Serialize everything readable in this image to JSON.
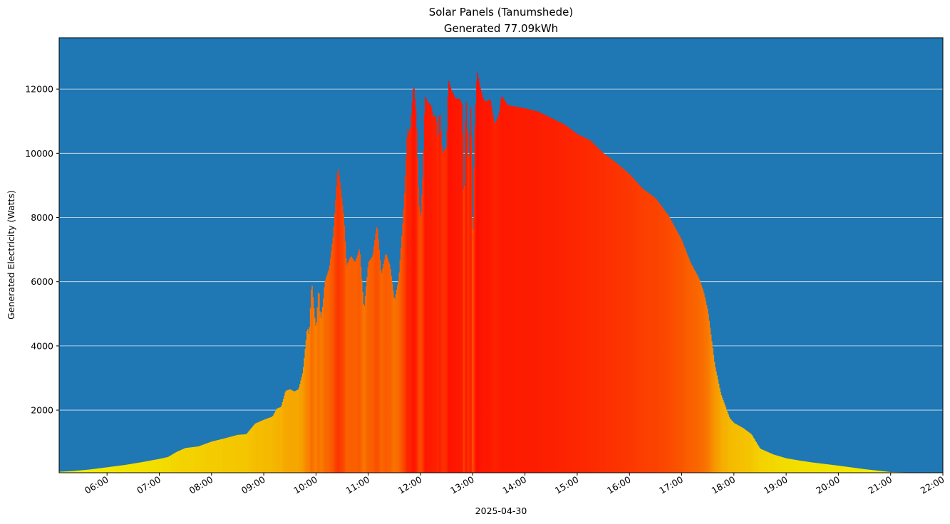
{
  "chart_data": {
    "type": "bar",
    "title": "Solar Panels (Tanumshede)",
    "subtitle": "Generated 77.09kWh",
    "xlabel": "2025-04-30",
    "ylabel": "Generated Electricity (Watts)",
    "x_tick_labels": [
      "06:00",
      "07:00",
      "08:00",
      "09:00",
      "10:00",
      "11:00",
      "12:00",
      "13:00",
      "14:00",
      "15:00",
      "16:00",
      "17:00",
      "18:00",
      "19:00",
      "20:00",
      "21:00",
      "22:00"
    ],
    "y_ticks": [
      2000,
      4000,
      6000,
      8000,
      10000,
      12000
    ],
    "ylim": [
      50,
      13600
    ],
    "xlim": [
      "05:05",
      "22:00"
    ],
    "grid": "y",
    "background_color": "#1f77b4",
    "color_scale": [
      "#f2f200",
      "#ff0000"
    ],
    "points": [
      [
        "05:05",
        80
      ],
      [
        "05:20",
        100
      ],
      [
        "05:40",
        150
      ],
      [
        "06:00",
        220
      ],
      [
        "06:20",
        290
      ],
      [
        "06:40",
        380
      ],
      [
        "07:00",
        480
      ],
      [
        "07:10",
        540
      ],
      [
        "07:20",
        700
      ],
      [
        "07:30",
        820
      ],
      [
        "07:45",
        870
      ],
      [
        "08:00",
        1020
      ],
      [
        "08:15",
        1120
      ],
      [
        "08:30",
        1230
      ],
      [
        "08:40",
        1250
      ],
      [
        "08:50",
        1580
      ],
      [
        "09:00",
        1700
      ],
      [
        "09:10",
        1800
      ],
      [
        "09:15",
        2050
      ],
      [
        "09:20",
        2100
      ],
      [
        "09:25",
        2600
      ],
      [
        "09:30",
        2650
      ],
      [
        "09:35",
        2580
      ],
      [
        "09:40",
        2650
      ],
      [
        "09:45",
        3200
      ],
      [
        "09:50",
        4600
      ],
      [
        "09:52",
        4300
      ],
      [
        "09:55",
        6050
      ],
      [
        "09:58",
        5000
      ],
      [
        "10:00",
        4500
      ],
      [
        "10:03",
        5900
      ],
      [
        "10:05",
        4800
      ],
      [
        "10:08",
        5300
      ],
      [
        "10:10",
        6000
      ],
      [
        "10:15",
        6400
      ],
      [
        "10:20",
        7500
      ],
      [
        "10:25",
        9600
      ],
      [
        "10:28",
        9000
      ],
      [
        "10:32",
        8000
      ],
      [
        "10:35",
        6500
      ],
      [
        "10:40",
        6800
      ],
      [
        "10:45",
        6600
      ],
      [
        "10:50",
        7050
      ],
      [
        "10:55",
        5100
      ],
      [
        "11:00",
        6600
      ],
      [
        "11:05",
        6800
      ],
      [
        "11:10",
        7800
      ],
      [
        "11:15",
        6200
      ],
      [
        "11:20",
        6900
      ],
      [
        "11:25",
        6500
      ],
      [
        "11:30",
        5400
      ],
      [
        "11:35",
        6100
      ],
      [
        "11:40",
        8000
      ],
      [
        "11:42",
        9000
      ],
      [
        "11:45",
        10800
      ],
      [
        "11:48",
        10600
      ],
      [
        "11:50",
        11400
      ],
      [
        "11:52",
        12200
      ],
      [
        "11:55",
        11200
      ],
      [
        "11:58",
        8500
      ],
      [
        "12:00",
        7900
      ],
      [
        "12:03",
        9500
      ],
      [
        "12:05",
        11800
      ],
      [
        "12:08",
        11600
      ],
      [
        "12:12",
        11500
      ],
      [
        "12:15",
        11100
      ],
      [
        "12:18",
        11200
      ],
      [
        "12:20",
        10300
      ],
      [
        "12:22",
        11450
      ],
      [
        "12:25",
        10000
      ],
      [
        "12:30",
        10200
      ],
      [
        "12:32",
        12300
      ],
      [
        "12:35",
        12000
      ],
      [
        "12:40",
        11700
      ],
      [
        "12:45",
        11700
      ],
      [
        "12:48",
        11500
      ],
      [
        "12:50",
        8000
      ],
      [
        "12:52",
        12000
      ],
      [
        "12:55",
        9500
      ],
      [
        "12:58",
        11800
      ],
      [
        "13:00",
        6700
      ],
      [
        "13:02",
        10500
      ],
      [
        "13:05",
        12600
      ],
      [
        "13:08",
        12100
      ],
      [
        "13:12",
        11700
      ],
      [
        "13:15",
        11600
      ],
      [
        "13:20",
        11700
      ],
      [
        "13:25",
        10900
      ],
      [
        "13:30",
        11200
      ],
      [
        "13:33",
        11800
      ],
      [
        "13:40",
        11500
      ],
      [
        "14:00",
        11400
      ],
      [
        "14:15",
        11300
      ],
      [
        "14:30",
        11100
      ],
      [
        "14:45",
        10900
      ],
      [
        "15:00",
        10600
      ],
      [
        "15:15",
        10400
      ],
      [
        "15:30",
        10000
      ],
      [
        "15:45",
        9700
      ],
      [
        "16:00",
        9350
      ],
      [
        "16:15",
        8900
      ],
      [
        "16:30",
        8600
      ],
      [
        "16:45",
        8050
      ],
      [
        "17:00",
        7300
      ],
      [
        "17:10",
        6600
      ],
      [
        "17:20",
        6100
      ],
      [
        "17:25",
        5700
      ],
      [
        "17:30",
        5100
      ],
      [
        "17:38",
        3400
      ],
      [
        "17:45",
        2500
      ],
      [
        "17:55",
        1750
      ],
      [
        "18:00",
        1600
      ],
      [
        "18:10",
        1450
      ],
      [
        "18:20",
        1250
      ],
      [
        "18:30",
        800
      ],
      [
        "18:45",
        620
      ],
      [
        "19:00",
        500
      ],
      [
        "19:15",
        430
      ],
      [
        "19:30",
        370
      ],
      [
        "20:00",
        270
      ],
      [
        "20:30",
        160
      ],
      [
        "21:00",
        70
      ],
      [
        "21:30",
        55
      ],
      [
        "22:00",
        50
      ]
    ]
  }
}
